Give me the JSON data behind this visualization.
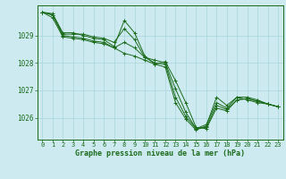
{
  "background_color": "#cdeaf0",
  "grid_color": "#aad4dc",
  "line_color": "#1a6b1a",
  "marker_color": "#1a6b1a",
  "xlabel": "Graphe pression niveau de la mer (hPa)",
  "xlabel_color": "#1a6b1a",
  "tick_color": "#1a6b1a",
  "spine_color": "#1a6b1a",
  "xlim": [
    -0.5,
    23.5
  ],
  "ylim": [
    1025.2,
    1030.1
  ],
  "yticks": [
    1026,
    1027,
    1028,
    1029
  ],
  "xticks": [
    0,
    1,
    2,
    3,
    4,
    5,
    6,
    7,
    8,
    9,
    10,
    11,
    12,
    13,
    14,
    15,
    16,
    17,
    18,
    19,
    20,
    21,
    22,
    23
  ],
  "series": [
    [
      1029.85,
      1029.8,
      1029.1,
      1029.1,
      1029.0,
      1028.9,
      1028.85,
      1028.6,
      1029.55,
      1029.1,
      1028.25,
      1027.95,
      1028.05,
      1027.35,
      1026.55,
      1025.65,
      1025.6,
      1026.35,
      1026.25,
      1026.65,
      1026.7,
      1026.6,
      1026.5,
      1026.4
    ],
    [
      1029.85,
      1029.75,
      1029.05,
      1029.05,
      1029.05,
      1028.95,
      1028.9,
      1028.75,
      1029.25,
      1028.85,
      1028.2,
      1028.1,
      1028.0,
      1027.05,
      1026.2,
      1025.6,
      1025.65,
      1026.45,
      1026.3,
      1026.65,
      1026.7,
      1026.6,
      1026.5,
      1026.4
    ],
    [
      1029.85,
      1029.75,
      1029.0,
      1028.95,
      1028.9,
      1028.8,
      1028.75,
      1028.55,
      1028.75,
      1028.55,
      1028.2,
      1028.0,
      1027.95,
      1026.75,
      1026.05,
      1025.6,
      1025.75,
      1026.55,
      1026.35,
      1026.75,
      1026.75,
      1026.65,
      1026.5,
      1026.4
    ],
    [
      1029.85,
      1029.65,
      1028.95,
      1028.9,
      1028.85,
      1028.75,
      1028.7,
      1028.55,
      1028.35,
      1028.25,
      1028.1,
      1027.95,
      1027.85,
      1026.55,
      1025.95,
      1025.55,
      1025.7,
      1026.75,
      1026.45,
      1026.75,
      1026.65,
      1026.55,
      1026.5,
      1026.4
    ]
  ]
}
